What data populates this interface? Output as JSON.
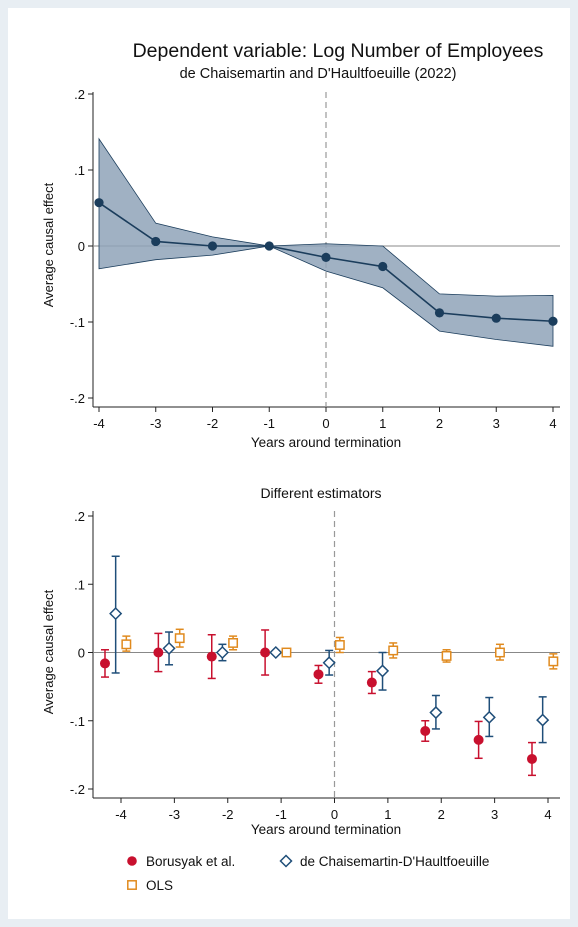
{
  "colors": {
    "background": "#e8eef3",
    "panel": "#ffffff",
    "band": "#8fa3b8",
    "line": "#1b3d5c",
    "borusyak": "#c8102e",
    "dch": "#1f4e79",
    "ols": "#e08a1e",
    "zero_line": "#888888",
    "vline": "#999999"
  },
  "chart_data": [
    {
      "type": "line",
      "title": "Dependent variable: Log Number of Employees",
      "subtitle": "de Chaisemartin and D'Haultfoeuille (2022)",
      "xlabel": "Years around termination",
      "ylabel": "Average causal effect",
      "x": [
        -4,
        -3,
        -2,
        -1,
        0,
        1,
        2,
        3,
        4
      ],
      "y": [
        0.057,
        0.006,
        0.0,
        0.0,
        -0.015,
        -0.027,
        -0.088,
        -0.095,
        -0.099
      ],
      "band_lower": [
        -0.03,
        -0.018,
        -0.012,
        0.0,
        -0.033,
        -0.055,
        -0.112,
        -0.123,
        -0.132
      ],
      "band_upper": [
        0.141,
        0.03,
        0.012,
        0.0,
        0.003,
        0.0,
        -0.063,
        -0.066,
        -0.065
      ],
      "xlim": [
        -4.2,
        4.2
      ],
      "ylim": [
        -0.2,
        0.2
      ],
      "x_ticks": [
        "-4",
        "-3",
        "-2",
        "-1",
        "0",
        "1",
        "2",
        "3",
        "4"
      ],
      "y_ticks": [
        ".2",
        ".1",
        "0",
        "-.1",
        "-.2"
      ],
      "grid": false
    },
    {
      "type": "scatter",
      "title": "Different estimators",
      "xlabel": "Years around termination",
      "ylabel": "Average causal effect",
      "x_ticks": [
        "-4",
        "-3",
        "-2",
        "-1",
        "0",
        "1",
        "2",
        "3",
        "4"
      ],
      "y_ticks": [
        ".2",
        ".1",
        "0",
        "-.1",
        "-.2"
      ],
      "xlim": [
        -4.7,
        4.3
      ],
      "ylim": [
        -0.2,
        0.2
      ],
      "grid": false,
      "legend_position": "bottom",
      "series": [
        {
          "name": "Borusyak et al.",
          "marker": "circle",
          "x": [
            -4.3,
            -3.3,
            -2.3,
            -1.3,
            -0.3,
            0.7,
            1.7,
            2.7,
            3.7
          ],
          "y": [
            -0.016,
            0.0,
            -0.006,
            0.0,
            -0.032,
            -0.044,
            -0.115,
            -0.128,
            -0.156
          ],
          "lower": [
            -0.036,
            -0.028,
            -0.038,
            -0.033,
            -0.045,
            -0.06,
            -0.13,
            -0.155,
            -0.18
          ],
          "upper": [
            0.004,
            0.028,
            0.026,
            0.033,
            -0.019,
            -0.028,
            -0.1,
            -0.101,
            -0.132
          ]
        },
        {
          "name": "de Chaisemartin-D'Haultfoeuille",
          "marker": "diamond",
          "x": [
            -4.1,
            -3.1,
            -2.1,
            -1.1,
            -0.1,
            0.9,
            1.9,
            2.9,
            3.9
          ],
          "y": [
            0.057,
            0.006,
            0.0,
            0.0,
            -0.015,
            -0.027,
            -0.088,
            -0.095,
            -0.099
          ],
          "lower": [
            -0.03,
            -0.018,
            -0.012,
            0.0,
            -0.033,
            -0.055,
            -0.112,
            -0.123,
            -0.132
          ],
          "upper": [
            0.141,
            0.03,
            0.012,
            0.0,
            0.003,
            0.0,
            -0.063,
            -0.066,
            -0.065
          ]
        },
        {
          "name": "OLS",
          "marker": "square",
          "x": [
            -3.9,
            -2.9,
            -1.9,
            -0.9,
            0.1,
            1.1,
            2.1,
            3.1,
            4.1
          ],
          "y": [
            0.012,
            0.021,
            0.014,
            0.0,
            0.011,
            0.003,
            -0.005,
            0.0,
            -0.013
          ],
          "lower": [
            0.002,
            0.008,
            0.004,
            0.0,
            0.0,
            -0.008,
            -0.014,
            -0.011,
            -0.024
          ],
          "upper": [
            0.024,
            0.034,
            0.024,
            0.0,
            0.022,
            0.014,
            0.004,
            0.012,
            -0.002
          ]
        }
      ]
    }
  ]
}
